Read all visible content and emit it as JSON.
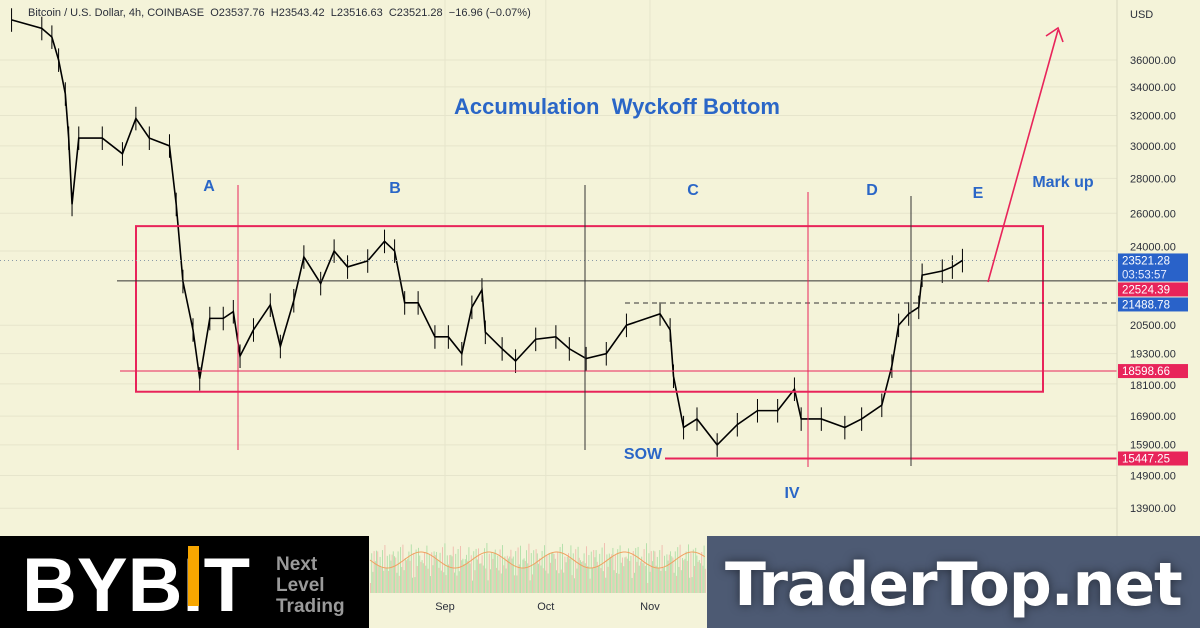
{
  "header": {
    "symbol": "Bitcoin / U.S. Dollar, 4h, COINBASE",
    "open": "O23537.76",
    "high": "H23543.42",
    "low": "L23516.63",
    "close": "C23521.28",
    "change": "−16.96 (−0.07%)"
  },
  "chart_data": {
    "type": "line",
    "title": "Accumulation  Wyckoff Bottom",
    "y_scale": "log",
    "currency": "USD",
    "ylim": [
      13900,
      39500
    ],
    "xlim": [
      "2022-04-22",
      "2023-02-05"
    ],
    "grid": true,
    "y_ticks": [
      "36000.00",
      "34000.00",
      "32000.00",
      "30000.00",
      "28000.00",
      "26000.00",
      "24000.00",
      "20500.00",
      "19300.00",
      "18100.00",
      "16900.00",
      "15900.00",
      "14900.00",
      "13900.00"
    ],
    "y_tick_values": [
      36000,
      34000,
      32000,
      30000,
      28000,
      26000,
      24000,
      20500,
      19300,
      18100,
      16900,
      15900,
      14900,
      13900
    ],
    "x_ticks": [
      {
        "label": "Sep",
        "date": "2022-09-01"
      },
      {
        "label": "Oct",
        "date": "2022-10-01"
      },
      {
        "label": "Nov",
        "date": "2022-11-01"
      }
    ],
    "series": [
      {
        "color": "#000000",
        "points": [
          [
            "2022-04-25",
            39200
          ],
          [
            "2022-05-04",
            38500
          ],
          [
            "2022-05-07",
            37800
          ],
          [
            "2022-05-09",
            36000
          ],
          [
            "2022-05-11",
            33500
          ],
          [
            "2022-05-12",
            30500
          ],
          [
            "2022-05-13",
            26500
          ],
          [
            "2022-05-15",
            30500
          ],
          [
            "2022-05-22",
            30500
          ],
          [
            "2022-05-28",
            29500
          ],
          [
            "2022-06-01",
            31800
          ],
          [
            "2022-06-05",
            30500
          ],
          [
            "2022-06-11",
            30000
          ],
          [
            "2022-06-13",
            26500
          ],
          [
            "2022-06-15",
            22500
          ],
          [
            "2022-06-18",
            20300
          ],
          [
            "2022-06-20",
            18300
          ],
          [
            "2022-06-23",
            20800
          ],
          [
            "2022-06-27",
            20800
          ],
          [
            "2022-06-30",
            21100
          ],
          [
            "2022-07-02",
            19200
          ],
          [
            "2022-07-06",
            20300
          ],
          [
            "2022-07-11",
            21400
          ],
          [
            "2022-07-14",
            19600
          ],
          [
            "2022-07-18",
            21600
          ],
          [
            "2022-07-21",
            23700
          ],
          [
            "2022-07-26",
            22400
          ],
          [
            "2022-07-30",
            24000
          ],
          [
            "2022-08-03",
            23200
          ],
          [
            "2022-08-09",
            23500
          ],
          [
            "2022-08-14",
            24500
          ],
          [
            "2022-08-17",
            24000
          ],
          [
            "2022-08-20",
            21500
          ],
          [
            "2022-08-24",
            21500
          ],
          [
            "2022-08-29",
            20000
          ],
          [
            "2022-09-02",
            20000
          ],
          [
            "2022-09-06",
            19300
          ],
          [
            "2022-09-09",
            21300
          ],
          [
            "2022-09-12",
            22100
          ],
          [
            "2022-09-13",
            20200
          ],
          [
            "2022-09-18",
            19500
          ],
          [
            "2022-09-22",
            19000
          ],
          [
            "2022-09-28",
            19900
          ],
          [
            "2022-10-04",
            20000
          ],
          [
            "2022-10-08",
            19500
          ],
          [
            "2022-10-13",
            19100
          ],
          [
            "2022-10-19",
            19300
          ],
          [
            "2022-10-25",
            20500
          ],
          [
            "2022-11-04",
            21000
          ],
          [
            "2022-11-07",
            20300
          ],
          [
            "2022-11-08",
            18400
          ],
          [
            "2022-11-11",
            16500
          ],
          [
            "2022-11-15",
            16800
          ],
          [
            "2022-11-21",
            15900
          ],
          [
            "2022-11-27",
            16600
          ],
          [
            "2022-12-03",
            17100
          ],
          [
            "2022-12-09",
            17100
          ],
          [
            "2022-12-14",
            17900
          ],
          [
            "2022-12-16",
            16800
          ],
          [
            "2022-12-22",
            16800
          ],
          [
            "2022-12-29",
            16500
          ],
          [
            "2023-01-03",
            16800
          ],
          [
            "2023-01-09",
            17300
          ],
          [
            "2023-01-12",
            18800
          ],
          [
            "2023-01-14",
            20500
          ],
          [
            "2023-01-17",
            21000
          ],
          [
            "2023-01-20",
            21300
          ],
          [
            "2023-01-21",
            22800
          ],
          [
            "2023-01-27",
            23000
          ],
          [
            "2023-01-30",
            23200
          ],
          [
            "2023-02-02",
            23521.28
          ]
        ]
      }
    ],
    "price_labels": [
      {
        "value": 23521.28,
        "text": "23521.28",
        "sub": "03:53:57",
        "color": "#2962c9"
      },
      {
        "value": 22524.39,
        "text": "22524.39",
        "color": "#e8245a"
      },
      {
        "value": 21488.78,
        "text": "21488.78",
        "color": "#2962c9"
      },
      {
        "value": 18598.66,
        "text": "18598.66",
        "color": "#e8245a"
      },
      {
        "value": 15447.25,
        "text": "15447.25",
        "color": "#e8245a"
      }
    ],
    "annotations": {
      "phases": [
        "A",
        "B",
        "C",
        "D",
        "E"
      ],
      "mark_up": "Mark up",
      "sow": "SOW",
      "iv": "IV",
      "range_box": {
        "top": 25300,
        "bottom": 17800,
        "color": "#e8245a"
      }
    }
  },
  "watermarks": {
    "bybit": {
      "logo": "BYBIT",
      "tagline": [
        "Next",
        "Level",
        "Trading"
      ]
    },
    "tradertop": "TraderTop.net"
  },
  "colors": {
    "background": "#f4f3d9",
    "accent_red": "#e8245a",
    "accent_blue": "#2962c9",
    "annotation_blue": "#2a66c7"
  }
}
